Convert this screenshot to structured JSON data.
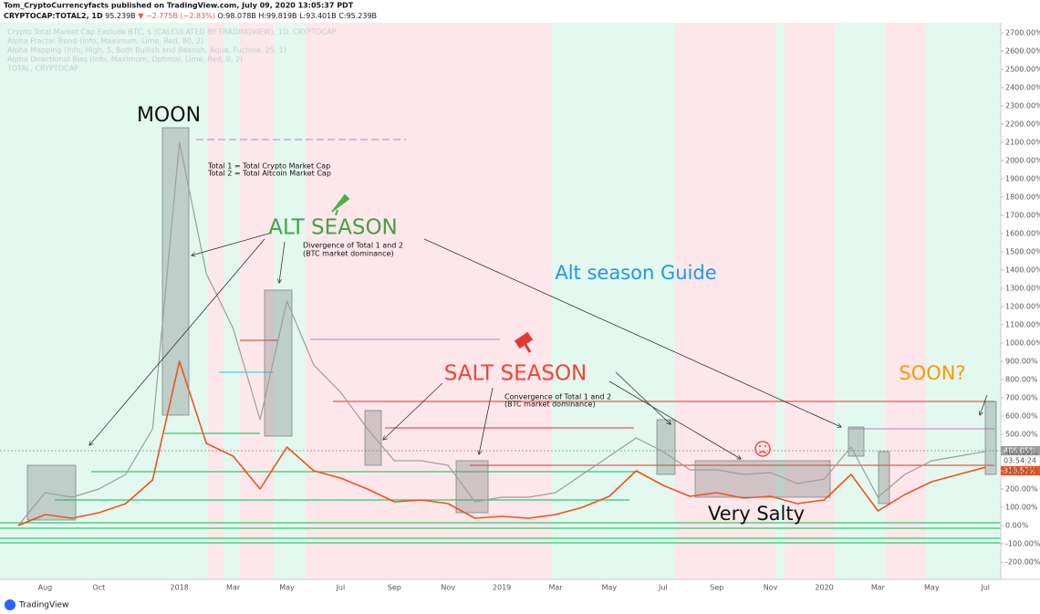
{
  "header": {
    "publisher": "Tom_CryptoCurrencyfacts published on TradingView.com, July 09, 2020 13:05:37 PDT",
    "symbol": "CRYPTOCAP:TOTAL2, 1D",
    "last": "95.239B",
    "change": "▼ −2.775B (−2.83%)",
    "ohlc": [
      "O:98.078B",
      "H:99.819B",
      "L:93.401B",
      "C:95.239B"
    ]
  },
  "chart_data": {
    "type": "line",
    "indicators": [
      "Alpha Fractal Trend (Info, Maximum, Lime, Red, 80, 2)",
      "Alpha Mapping (Info, High, 5, Both Bullish and Bearish, Aqua, Fuchsia, 25, 1)",
      "Alpha Directional Bias (Info, Maximum, Optimal, Lime, Red, 0, 2)"
    ],
    "categories": [
      null,
      "Aug",
      null,
      "Oct",
      null,
      null,
      "2018",
      null,
      "Mar",
      null,
      "May",
      null,
      "Jul",
      null,
      "Sep",
      null,
      "Nov",
      null,
      "2019",
      null,
      "Mar",
      null,
      "May",
      null,
      "Jul",
      null,
      "Sep",
      null,
      "Nov",
      null,
      "2020",
      null,
      "Mar",
      null,
      "May",
      null,
      "Jul"
    ],
    "series": [
      {
        "name": "Crypto Total Market Cap Exclude BTC, $ (CALCULATED BY TRADINGVIEW), 1D, CRYPTOCAP",
        "color": "#9e9e9e",
        "values": [
          0,
          180,
          155,
          200,
          280,
          530,
          2100,
          1380,
          1080,
          580,
          1230,
          880,
          730,
          530,
          355,
          355,
          330,
          130,
          155,
          155,
          180,
          280,
          380,
          480,
          405,
          305,
          305,
          280,
          290,
          230,
          255,
          430,
          155,
          280,
          355,
          380,
          406
        ]
      },
      {
        "name": "TOTAL, CRYPTOCAP",
        "color": "#f4511e",
        "values": [
          0,
          60,
          40,
          70,
          120,
          250,
          900,
          450,
          380,
          200,
          430,
          300,
          260,
          200,
          130,
          140,
          120,
          40,
          50,
          40,
          60,
          100,
          160,
          300,
          220,
          160,
          180,
          150,
          160,
          120,
          140,
          280,
          80,
          170,
          240,
          280,
          319
        ]
      }
    ],
    "ylim": [
      -300,
      2750
    ],
    "yticks": [
      {
        "value": 2700,
        "label": "2700.00%"
      },
      {
        "value": 2600,
        "label": "2600.00%"
      },
      {
        "value": 2500,
        "label": "2500.00%"
      },
      {
        "value": 2400,
        "label": "2400.00%"
      },
      {
        "value": 2300,
        "label": "2300.00%"
      },
      {
        "value": 2200,
        "label": "2200.00%"
      },
      {
        "value": 2100,
        "label": "2100.00%"
      },
      {
        "value": 2000,
        "label": "2000.00%"
      },
      {
        "value": 1900,
        "label": "1900.00%"
      },
      {
        "value": 1800,
        "label": "1800.00%"
      },
      {
        "value": 1700,
        "label": "1700.00%"
      },
      {
        "value": 1600,
        "label": "1600.00%"
      },
      {
        "value": 1500,
        "label": "1500.00%"
      },
      {
        "value": 1400,
        "label": "1400.00%"
      },
      {
        "value": 1300,
        "label": "1300.00%"
      },
      {
        "value": 1200,
        "label": "1200.00%"
      },
      {
        "value": 1100,
        "label": "1100.00%"
      },
      {
        "value": 1000,
        "label": "1000.00%"
      },
      {
        "value": 900,
        "label": "900.00%"
      },
      {
        "value": 800,
        "label": "800.00%"
      },
      {
        "value": 700,
        "label": "700.00%"
      },
      {
        "value": 600,
        "label": "600.00%"
      },
      {
        "value": 500,
        "label": "500.00%"
      },
      {
        "value": 400,
        "label": "400.00%"
      },
      {
        "value": 300,
        "label": "300.00%"
      },
      {
        "value": 200,
        "label": "200.00%"
      },
      {
        "value": 100,
        "label": "100.00%"
      },
      {
        "value": 0,
        "label": "0.00%"
      },
      {
        "value": -100,
        "label": "-100.00%"
      },
      {
        "value": -200,
        "label": "-200.00%"
      }
    ],
    "grid": false,
    "price_labels": [
      "406.05%",
      "03:54:24",
      "318.57%"
    ],
    "annotations": [
      "MOON",
      "Total 1 = Total Crypto Market Cap",
      "Total 2 = Total Altcoin Market Cap",
      "ALT SEASON",
      "Divergence of Total 1 and 2",
      "(BTC market dominance)",
      "Alt season Guide",
      "SALT SEASON",
      "Convergence of Total 1 and 2",
      "(BTC market dominance)",
      "SOON?",
      "Very Salty"
    ]
  },
  "footer": {
    "brand": "TradingView"
  }
}
